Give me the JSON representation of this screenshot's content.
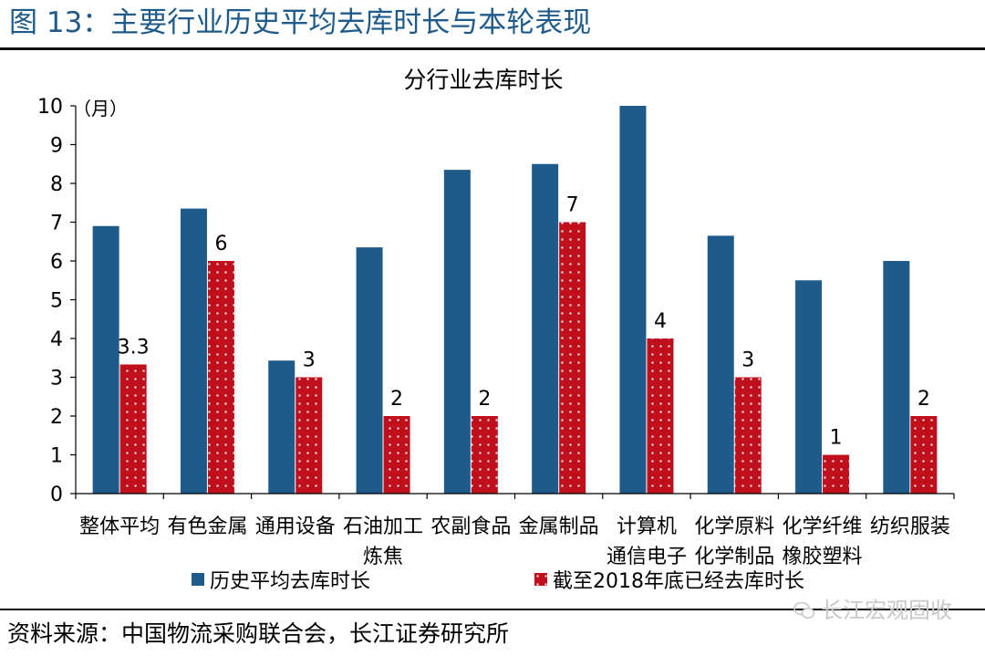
{
  "figure_title": "图 13：主要行业历史平均去库时长与本轮表现",
  "source_note": "资料来源：中国物流采购联合会，长江证券研究所",
  "watermark": "长江宏观固收",
  "icons": {
    "watermark": "wechat-icon"
  },
  "colors": {
    "series_historical": "#1f5b8a",
    "series_2018": "#c0101e",
    "title": "#1f5b8a"
  },
  "chart_data": {
    "type": "bar",
    "title": "分行业去库时长",
    "y_unit_label": "（月）",
    "ylim": [
      0,
      10
    ],
    "yticks": [
      0,
      1,
      2,
      3,
      4,
      5,
      6,
      7,
      8,
      9,
      10
    ],
    "grid": false,
    "legend_position": "bottom",
    "categories": [
      [
        "整体平均"
      ],
      [
        "有色金属"
      ],
      [
        "通用设备"
      ],
      [
        "石油加工",
        "炼焦"
      ],
      [
        "农副食品"
      ],
      [
        "金属制品"
      ],
      [
        "计算机",
        "通信电子"
      ],
      [
        "化学原料",
        "化学制品"
      ],
      [
        "化学纤维",
        "橡胶塑料"
      ],
      [
        "纺织服装"
      ]
    ],
    "series": [
      {
        "name": "历史平均去库时长",
        "values": [
          6.9,
          7.35,
          3.43,
          6.35,
          8.35,
          8.5,
          10.0,
          6.65,
          5.5,
          6.0
        ]
      },
      {
        "name": "截至2018年底已经去库时长",
        "values": [
          3.33,
          6.0,
          3.0,
          2.0,
          2.0,
          7.0,
          4.0,
          3.0,
          1.0,
          2.0
        ]
      }
    ],
    "data_labels_series_2": [
      "3.3",
      "6",
      "3",
      "2",
      "2",
      "7",
      "4",
      "3",
      "1",
      "2"
    ]
  }
}
